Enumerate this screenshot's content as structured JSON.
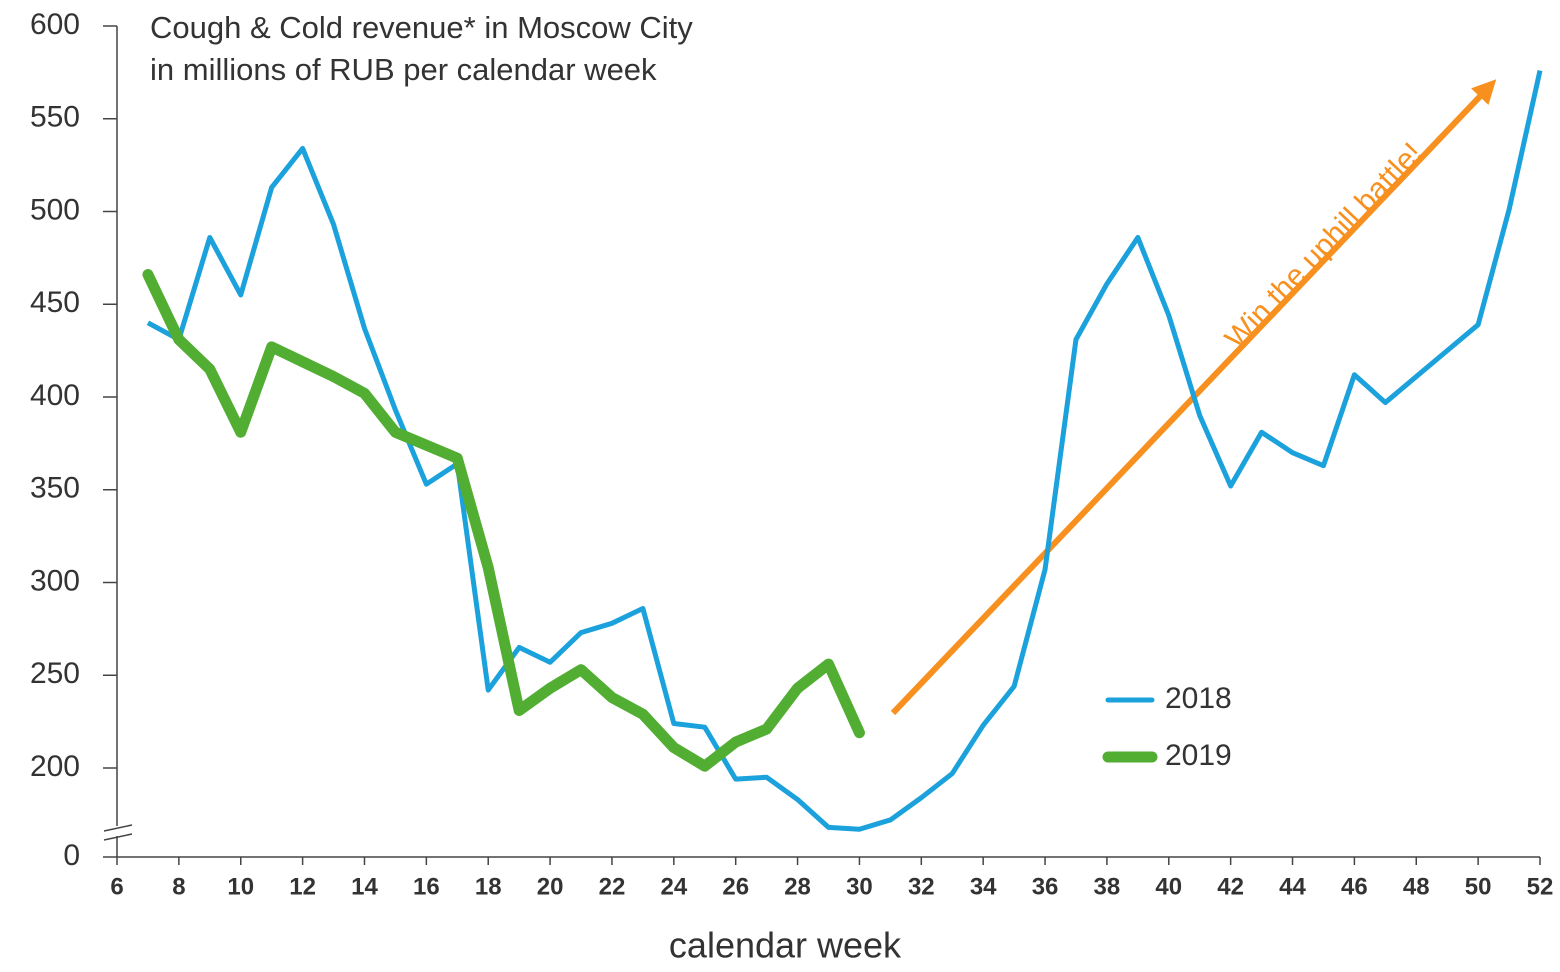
{
  "chart_data": {
    "type": "line",
    "title": "Cough & Cold revenue* in Moscow City",
    "subtitle": "in millions of RUB per calendar week",
    "x_label": "calendar week",
    "annotation": "Win the uphill battle!",
    "annotation_color": "#f7901e",
    "axis_break": true,
    "legend": "lower right",
    "xlim": [
      6,
      52
    ],
    "xticks": [
      6,
      8,
      10,
      12,
      14,
      16,
      18,
      20,
      22,
      24,
      26,
      28,
      30,
      32,
      34,
      36,
      38,
      40,
      42,
      44,
      46,
      48,
      50,
      52
    ],
    "ylim": [
      0,
      600
    ],
    "yticks": [
      0,
      200,
      250,
      300,
      350,
      400,
      450,
      500,
      550,
      600
    ],
    "series": [
      {
        "name": "2018",
        "color": "#1ba1dc",
        "x": [
          7,
          8,
          9,
          10,
          11,
          12,
          13,
          14,
          15,
          16,
          17,
          18,
          19,
          20,
          21,
          22,
          23,
          24,
          25,
          26,
          27,
          28,
          29,
          30,
          31,
          32,
          33,
          34,
          35,
          36,
          37,
          38,
          39,
          40,
          41,
          42,
          43,
          44,
          45,
          46,
          47,
          48,
          49,
          50,
          51,
          52
        ],
        "values": [
          440,
          431,
          486,
          455,
          513,
          534,
          493,
          437,
          393,
          353,
          364,
          242,
          265,
          257,
          273,
          278,
          286,
          224,
          222,
          194,
          195,
          183,
          168,
          167,
          172,
          184,
          197,
          223,
          244,
          307,
          431,
          461,
          486,
          444,
          390,
          352,
          381,
          370,
          363,
          412,
          397,
          411,
          425,
          439,
          501,
          576
        ]
      },
      {
        "name": "2019",
        "color": "#52ae32",
        "x": [
          7,
          8,
          9,
          10,
          11,
          12,
          13,
          14,
          15,
          16,
          17,
          18,
          19,
          20,
          21,
          22,
          23,
          24,
          25,
          26,
          27,
          28,
          29,
          30
        ],
        "values": [
          466,
          431,
          415,
          381,
          427,
          419,
          411,
          402,
          381,
          374,
          367,
          308,
          231,
          243,
          253,
          238,
          229,
          211,
          201,
          214,
          221,
          243,
          256,
          219
        ]
      }
    ]
  }
}
